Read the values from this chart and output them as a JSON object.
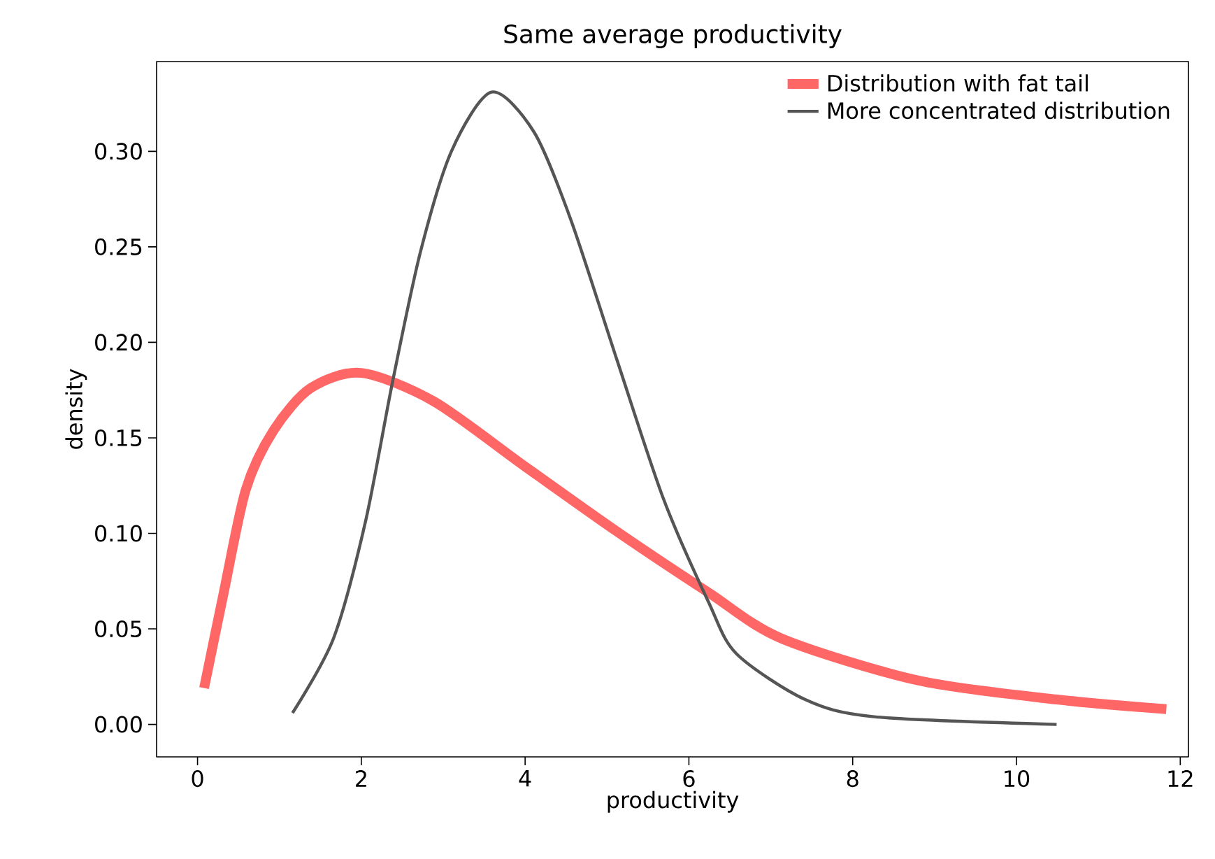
{
  "chart_data": {
    "type": "line",
    "title": "Same average productivity",
    "xlabel": "productivity",
    "ylabel": "density",
    "xlim": [
      -0.5,
      12.1
    ],
    "ylim": [
      -0.017,
      0.347
    ],
    "xticks": [
      0,
      2,
      4,
      6,
      8,
      10,
      12
    ],
    "yticks": [
      {
        "value": 0,
        "label": "0.00"
      },
      {
        "value": 0.05,
        "label": "0.05"
      },
      {
        "value": 0.1,
        "label": "0.10"
      },
      {
        "value": 0.15,
        "label": "0.15"
      },
      {
        "value": 0.2,
        "label": "0.20"
      },
      {
        "value": 0.25,
        "label": "0.25"
      },
      {
        "value": 0.3,
        "label": "0.30"
      }
    ],
    "legend": "top right",
    "grid": false,
    "marker": "none",
    "line_style": "solid",
    "series": [
      {
        "name": "Distribution with fat tail",
        "color": "#ff6666",
        "x": [
          0.08,
          0.32,
          0.59,
          0.93,
          1.38,
          2.0,
          2.89,
          4.0,
          5.12,
          6.24,
          7.13,
          8.8,
          10.5,
          11.83
        ],
        "values": [
          0.019,
          0.069,
          0.123,
          0.154,
          0.176,
          0.184,
          0.169,
          0.135,
          0.101,
          0.069,
          0.045,
          0.023,
          0.013,
          0.008
        ]
      },
      {
        "name": "More concentrated distribution",
        "color": "#555555",
        "x": [
          1.16,
          1.66,
          2.05,
          2.38,
          2.72,
          3.1,
          3.59,
          4.11,
          4.56,
          5.12,
          5.69,
          6.24,
          6.58,
          7.42,
          8.26,
          10.49
        ],
        "values": [
          0.006,
          0.045,
          0.106,
          0.179,
          0.247,
          0.3,
          0.331,
          0.31,
          0.264,
          0.191,
          0.118,
          0.064,
          0.037,
          0.013,
          0.004,
          0.0
        ]
      }
    ]
  }
}
